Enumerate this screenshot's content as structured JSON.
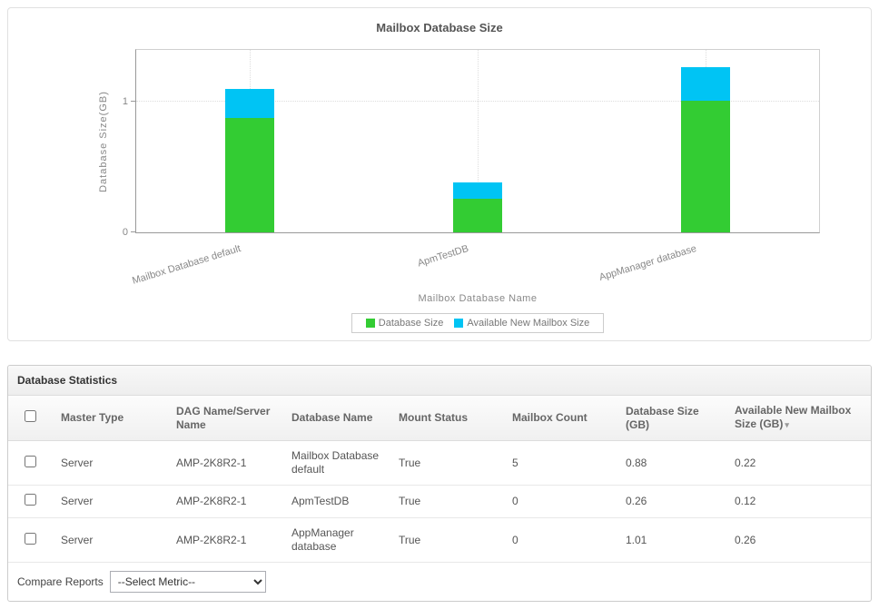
{
  "chart_data": {
    "type": "bar",
    "stacked": true,
    "title": "Mailbox Database Size",
    "xlabel": "Mailbox Database Name",
    "ylabel": "Database Size(GB)",
    "categories": [
      "Mailbox Database default",
      "ApmTestDB",
      "AppManager database"
    ],
    "series": [
      {
        "name": "Database Size",
        "color": "#33cc33",
        "values": [
          0.88,
          0.26,
          1.01
        ]
      },
      {
        "name": "Available New Mailbox Size",
        "color": "#00c4f4",
        "values": [
          0.22,
          0.12,
          0.26
        ]
      }
    ],
    "ylim": [
      0,
      1.4
    ],
    "yticks": [
      0,
      1
    ],
    "grid": "dotted",
    "legend_position": "bottom-center"
  },
  "table": {
    "section_title": "Database Statistics",
    "columns": [
      "Master Type",
      "DAG Name/Server Name",
      "Database Name",
      "Mount Status",
      "Mailbox Count",
      "Database Size  (GB)",
      "Available New Mailbox Size  (GB)"
    ],
    "sort_icon": "▾",
    "rows": [
      {
        "master_type": "Server",
        "dag_name": "AMP-2K8R2-1",
        "database_name": "Mailbox Database default",
        "mount_status": "True",
        "mailbox_count": "5",
        "database_size": "0.88",
        "available_size": "0.22"
      },
      {
        "master_type": "Server",
        "dag_name": "AMP-2K8R2-1",
        "database_name": "ApmTestDB",
        "mount_status": "True",
        "mailbox_count": "0",
        "database_size": "0.26",
        "available_size": "0.12"
      },
      {
        "master_type": "Server",
        "dag_name": "AMP-2K8R2-1",
        "database_name": "AppManager database",
        "mount_status": "True",
        "mailbox_count": "0",
        "database_size": "1.01",
        "available_size": "0.26"
      }
    ]
  },
  "footer": {
    "compare_label": "Compare Reports",
    "select_value": "--Select Metric--"
  }
}
